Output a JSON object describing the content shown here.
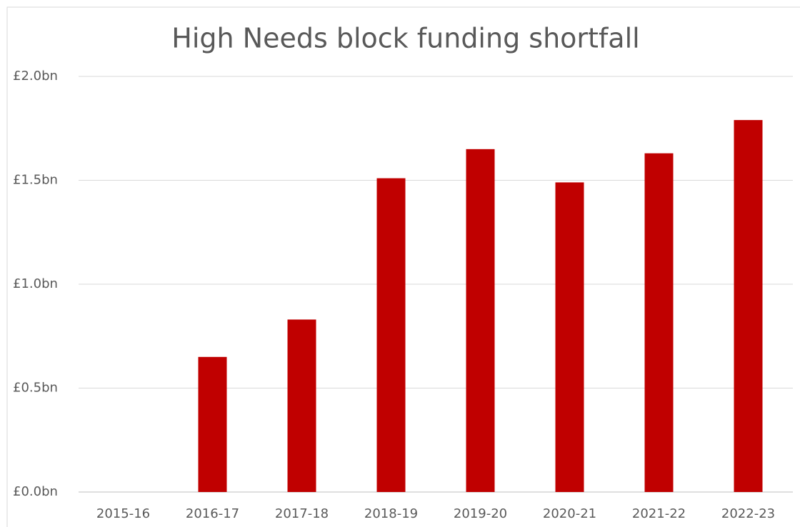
{
  "chart_data": {
    "type": "bar",
    "title": "High Needs block funding shortfall",
    "categories": [
      "2015-16",
      "2016-17",
      "2017-18",
      "2018-19",
      "2019-20",
      "2020-21",
      "2021-22",
      "2022-23"
    ],
    "values": [
      0,
      0.65,
      0.83,
      1.51,
      1.65,
      1.49,
      1.63,
      1.79
    ],
    "color": "#c00000",
    "ylim": [
      0,
      2
    ],
    "yticks": [
      {
        "value": 0,
        "label": "£0.0bn"
      },
      {
        "value": 0.5,
        "label": "£0.5bn"
      },
      {
        "value": 1,
        "label": "£1.0bn"
      },
      {
        "value": 1.5,
        "label": "£1.5bn"
      },
      {
        "value": 2,
        "label": "£2.0bn"
      }
    ],
    "grid": true
  }
}
